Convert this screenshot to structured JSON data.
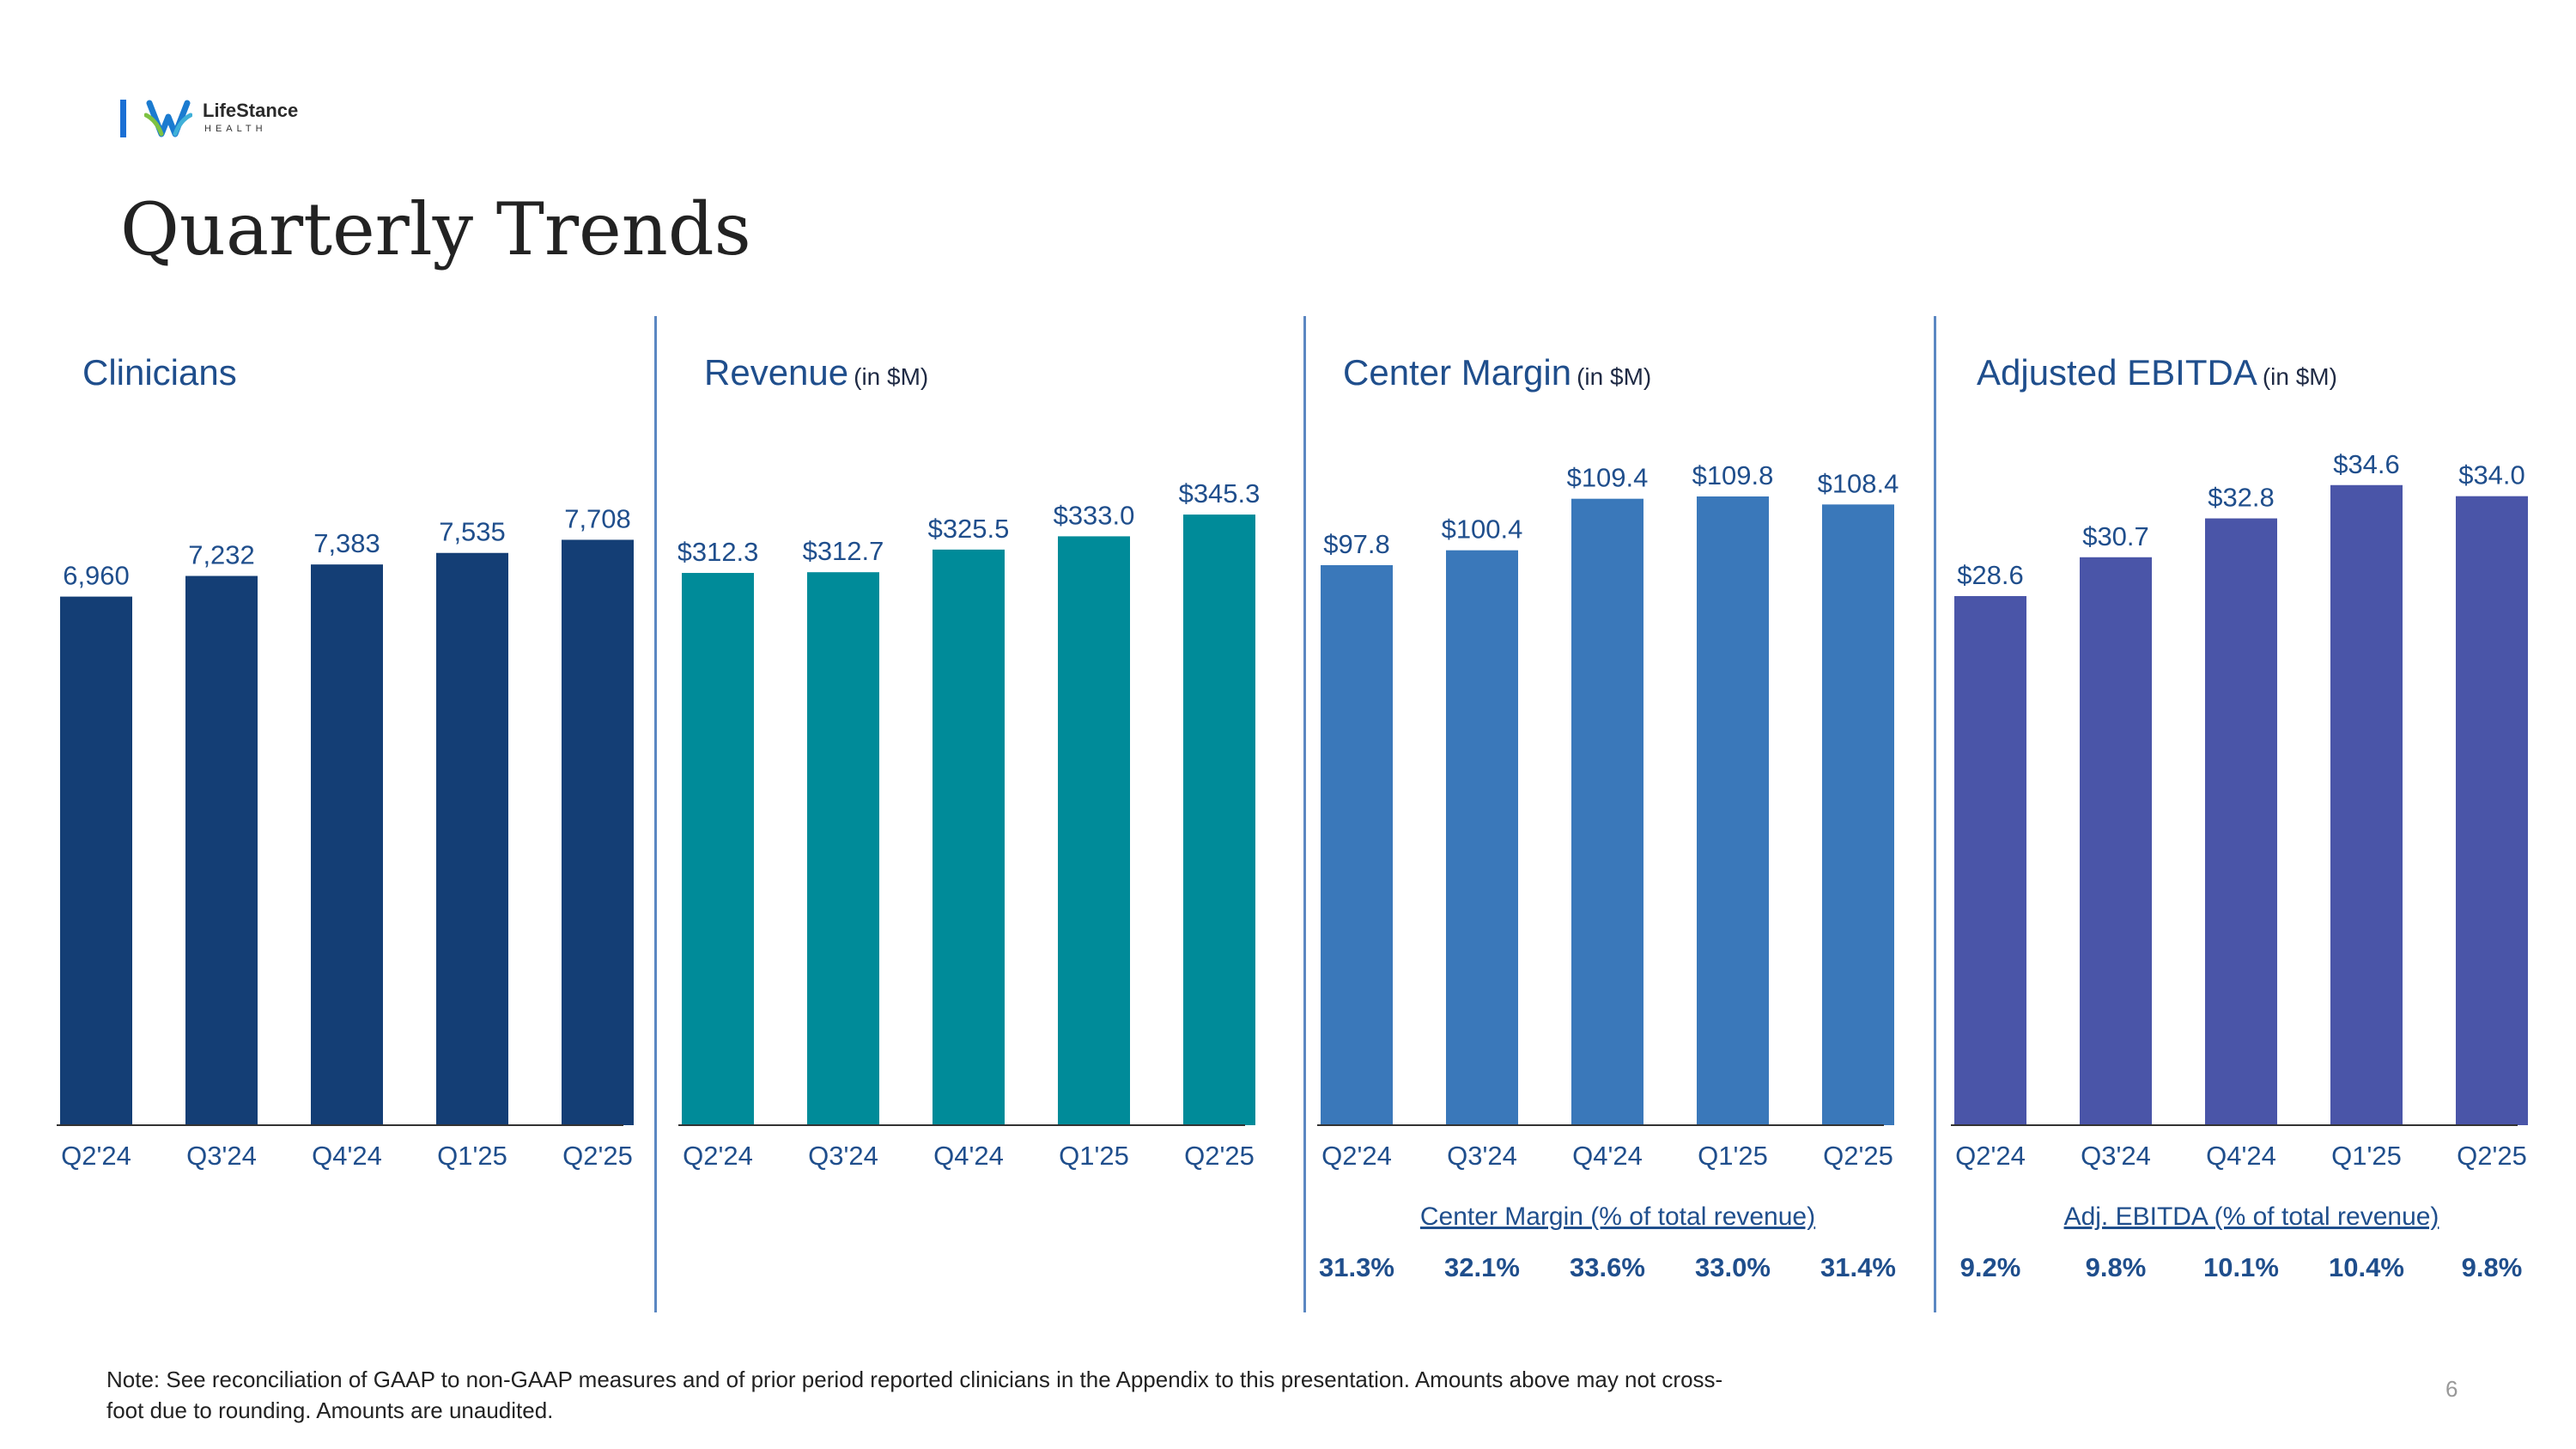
{
  "logo": {
    "name": "LifeStance",
    "subtitle": "HEALTH",
    "bar_color": "#1a6fd4"
  },
  "page_title": "Quarterly Trends",
  "colors": {
    "title_text": "#1f4e8c",
    "axis_text": "#1f4e8c",
    "divider": "#5b87c2"
  },
  "chart_data": [
    {
      "type": "bar",
      "title": "Clinicians",
      "unit": "",
      "color": "#143e75",
      "categories": [
        "Q2'24",
        "Q3'24",
        "Q4'24",
        "Q1'25",
        "Q2'25"
      ],
      "values": [
        6960,
        7232,
        7383,
        7535,
        7708
      ],
      "data_labels": [
        "6,960",
        "7,232",
        "7,383",
        "7,535",
        "7,708"
      ],
      "ylim": [
        0,
        9500
      ],
      "grid": false
    },
    {
      "type": "bar",
      "title": "Revenue",
      "unit": "(in $M)",
      "color": "#008b99",
      "categories": [
        "Q2'24",
        "Q3'24",
        "Q4'24",
        "Q1'25",
        "Q2'25"
      ],
      "values": [
        312.3,
        312.7,
        325.5,
        333.0,
        345.3
      ],
      "data_labels": [
        "$312.3",
        "$312.7",
        "$325.5",
        "$333.0",
        "$345.3"
      ],
      "ylim": [
        0,
        408
      ],
      "grid": false
    },
    {
      "type": "bar",
      "title": "Center Margin",
      "unit": "(in $M)",
      "color": "#3a78ba",
      "categories": [
        "Q2'24",
        "Q3'24",
        "Q4'24",
        "Q1'25",
        "Q2'25"
      ],
      "values": [
        97.8,
        100.4,
        109.4,
        109.8,
        108.4
      ],
      "data_labels": [
        "$97.8",
        "$100.4",
        "$109.4",
        "$109.8",
        "$108.4"
      ],
      "ylim": [
        0,
        126
      ],
      "grid": false,
      "sub_title": "Center Margin (% of total revenue)",
      "percent_labels": [
        "31.3%",
        "32.1%",
        "33.6%",
        "33.0%",
        "31.4%"
      ]
    },
    {
      "type": "bar",
      "title": "Adjusted EBITDA",
      "unit": "(in $M)",
      "color": "#4a55a8",
      "categories": [
        "Q2'24",
        "Q3'24",
        "Q4'24",
        "Q1'25",
        "Q2'25"
      ],
      "values": [
        28.6,
        30.7,
        32.8,
        34.6,
        34.0
      ],
      "data_labels": [
        "$28.6",
        "$30.7",
        "$32.8",
        "$34.6",
        "$34.0"
      ],
      "ylim": [
        0,
        39
      ],
      "grid": false,
      "sub_title": "Adj. EBITDA (% of total revenue)",
      "percent_labels": [
        "9.2%",
        "9.8%",
        "10.1%",
        "10.4%",
        "9.8%"
      ]
    }
  ],
  "footnote": "Note:  See reconciliation of GAAP to non-GAAP measures and of prior period reported clinicians in the Appendix to this presentation. Amounts above may not cross-foot due to rounding. Amounts are unaudited.",
  "page_number": "6"
}
